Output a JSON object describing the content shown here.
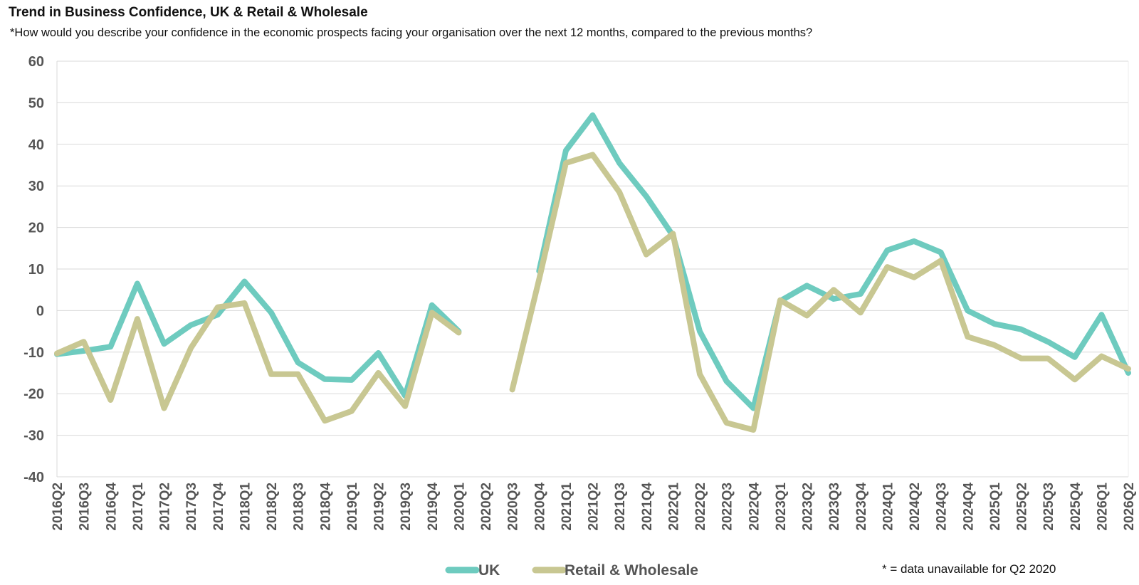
{
  "title": "Trend in Business Confidence, UK & Retail & Wholesale",
  "subtitle": "*How would you describe your confidence in the economic prospects facing your organisation over the next 12 months, compared to the previous months?",
  "footnote": "* = data unavailable for Q2 2020",
  "colors": {
    "uk": "#6ecbbf",
    "retail": "#c8c792",
    "grid": "#d9d9d9",
    "axis_text": "#555555"
  },
  "chart_data": {
    "type": "line",
    "title": "Trend in Business Confidence, UK & Retail & Wholesale",
    "xlabel": "",
    "ylabel": "",
    "ylim": [
      -40,
      60
    ],
    "yticks": [
      60,
      50,
      40,
      30,
      20,
      10,
      0,
      -10,
      -20,
      -30,
      -40
    ],
    "grid": true,
    "legend_position": "bottom",
    "categories": [
      "2016Q2",
      "2016Q3",
      "2016Q4",
      "2017Q1",
      "2017Q2",
      "2017Q3",
      "2017Q4",
      "2018Q1",
      "2018Q2",
      "2018Q3",
      "2018Q4",
      "2019Q1",
      "2019Q2",
      "2019Q3",
      "2019Q4",
      "2020Q1",
      "2020Q2",
      "2020Q3",
      "2020Q4",
      "2021Q1",
      "2021Q2",
      "2021Q3",
      "2021Q4",
      "2022Q1",
      "2022Q2",
      "2022Q3",
      "2022Q4",
      "2023Q1",
      "2023Q2",
      "2023Q3",
      "2023Q4",
      "2024Q1",
      "2024Q2",
      "2024Q3",
      "2024Q4",
      "2025Q1",
      "2025Q2",
      "2025Q3",
      "2025Q4",
      "2026Q1",
      "2026Q2"
    ],
    "series": [
      {
        "name": "UK",
        "color": "#6ecbbf",
        "values": [
          -10.5,
          -9.7,
          -8.7,
          6.5,
          -8,
          -3.5,
          -1,
          7,
          -0.5,
          -12.5,
          -16.5,
          -16.7,
          -10.2,
          -20.5,
          1.3,
          -5,
          null,
          null,
          9.5,
          38.5,
          47,
          35.5,
          27.5,
          18,
          -5,
          -17,
          -23.5,
          2.3,
          6,
          2.8,
          4,
          14.5,
          16.7,
          14,
          0,
          -3.2,
          -4.5,
          -7.5,
          -11.2,
          -1,
          -15
        ]
      },
      {
        "name": "Retail & Wholesale",
        "color": "#c8c792",
        "values": [
          -10.3,
          -7.5,
          -21.5,
          -2,
          -23.5,
          -9,
          0.8,
          1.8,
          -15.3,
          -15.3,
          -26.5,
          -24.2,
          -15,
          -23,
          -0.5,
          -5.3,
          null,
          -19,
          7.5,
          35.5,
          37.5,
          28.5,
          13.5,
          18.5,
          -15.3,
          -27,
          -28.7,
          2.5,
          -1.2,
          5,
          -0.5,
          10.5,
          8,
          12,
          -6.3,
          -8.3,
          -11.5,
          -11.5,
          -16.6,
          -11,
          -14
        ]
      }
    ]
  }
}
